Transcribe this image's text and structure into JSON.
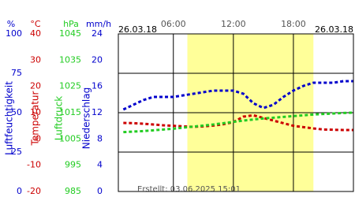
{
  "chart_data": {
    "type": "line",
    "dates": [
      "26.03.18",
      "26.03.18"
    ],
    "footer": "Erstellt: 03.06.2025 15:01",
    "xlim": [
      0.5,
      24
    ],
    "xticks": [
      {
        "value": 6,
        "label": "06:00"
      },
      {
        "value": 12,
        "label": "12:00"
      },
      {
        "value": 18,
        "label": "18:00"
      }
    ],
    "daylight": [
      7.4,
      20.0
    ],
    "grid": true,
    "axes": [
      {
        "unit": "%",
        "name": "Luftfeuchtigkeit",
        "color": "#0000cc",
        "lim": [
          0,
          100
        ],
        "ticks": [
          0,
          25,
          50,
          75,
          100
        ]
      },
      {
        "unit": "°C",
        "name": "Temperatur",
        "color": "#cc0000",
        "lim": [
          -20,
          40
        ],
        "ticks": [
          -20,
          -10,
          0,
          10,
          20,
          30,
          40
        ]
      },
      {
        "unit": "hPa",
        "name": "Luftdruck",
        "color": "#22cc22",
        "lim": [
          985,
          1045
        ],
        "ticks": [
          985,
          995,
          1005,
          1015,
          1025,
          1035,
          1045
        ]
      },
      {
        "unit": "mm/h",
        "name": "Niederschlag",
        "color": "#0000cc",
        "lim": [
          0,
          24
        ],
        "ticks": [
          0,
          4,
          8,
          12,
          16,
          20,
          24
        ]
      }
    ],
    "x": [
      1,
      2,
      3,
      4,
      5,
      6,
      7,
      8,
      9,
      10,
      11,
      12,
      13,
      14,
      15,
      16,
      17,
      18,
      19,
      20,
      21,
      22,
      23,
      24
    ],
    "series": [
      {
        "name": "Luftfeuchtigkeit",
        "axis": 0,
        "color": "#0000cc",
        "values": [
          52,
          55,
          58,
          60,
          60,
          60,
          61,
          62,
          63,
          64,
          64,
          64,
          62,
          56,
          53,
          55,
          60,
          64,
          67,
          69,
          69,
          69,
          70,
          70
        ]
      },
      {
        "name": "Temperatur",
        "axis": 1,
        "color": "#cc0000",
        "values": [
          6.1,
          6,
          5.8,
          5.5,
          5.2,
          5,
          4.8,
          4.6,
          4.8,
          5.1,
          5.6,
          6.4,
          8.5,
          9,
          8,
          7,
          6,
          5,
          4.5,
          4,
          3.6,
          3.5,
          3.4,
          3.4
        ]
      },
      {
        "name": "Luftdruck",
        "axis": 2,
        "color": "#22cc22",
        "values": [
          1007.6,
          1007.8,
          1008,
          1008.3,
          1008.6,
          1008.9,
          1009.3,
          1009.7,
          1010.1,
          1010.5,
          1011,
          1011.5,
          1012,
          1012.4,
          1012.8,
          1013.1,
          1013.4,
          1013.7,
          1014,
          1014.3,
          1014.5,
          1014.7,
          1014.9,
          1015
        ]
      }
    ]
  }
}
